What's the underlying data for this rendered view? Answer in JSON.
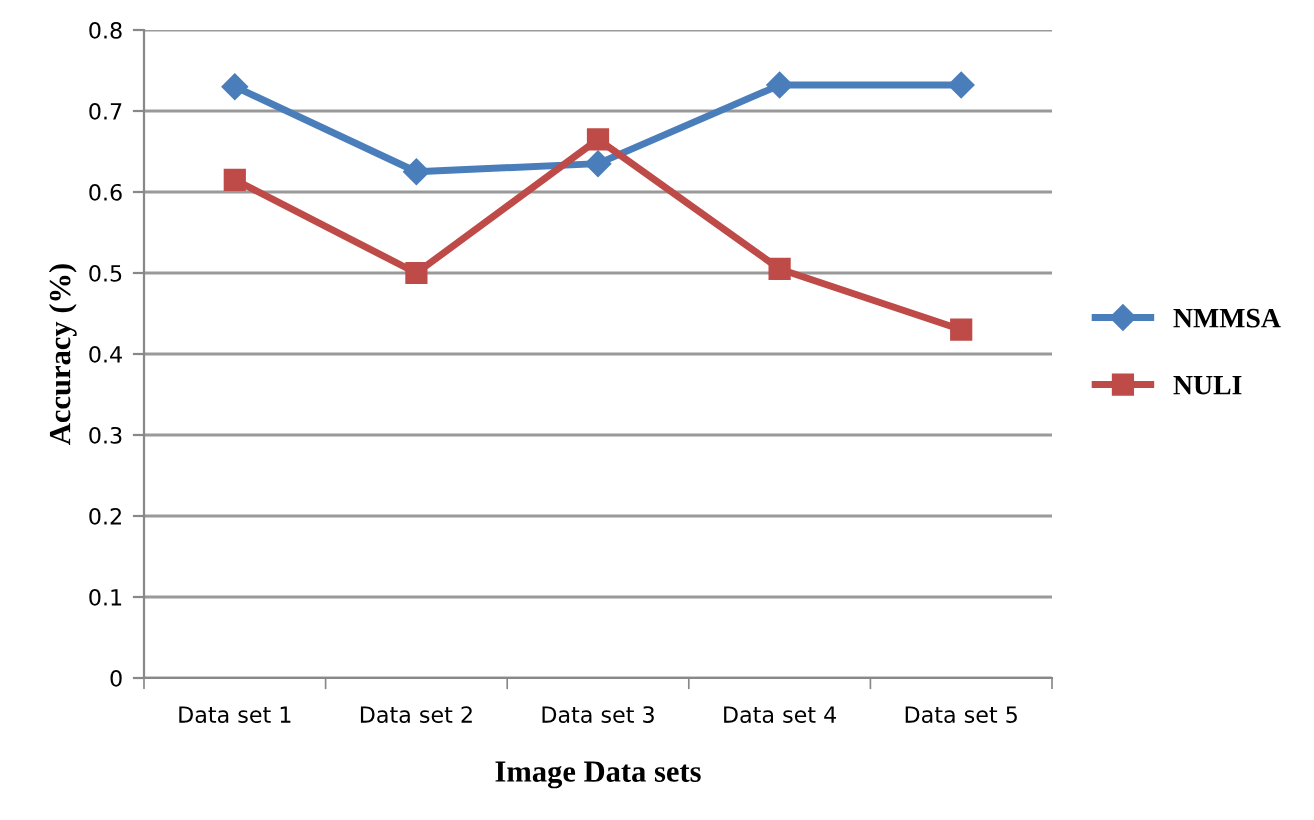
{
  "chart_data": {
    "type": "line",
    "xlabel": "Image Data sets",
    "ylabel": "Accuracy (%)",
    "categories": [
      "Data set 1",
      "Data set 2",
      "Data set 3",
      "Data set 4",
      "Data set 5"
    ],
    "series": [
      {
        "name": "NMMSA",
        "color": "#4a7ebb",
        "marker": "diamond",
        "values": [
          0.73,
          0.625,
          0.635,
          0.732,
          0.732
        ]
      },
      {
        "name": "NULI",
        "color": "#be4b48",
        "marker": "square",
        "values": [
          0.615,
          0.5,
          0.665,
          0.505,
          0.43
        ]
      }
    ],
    "ylim": [
      0,
      0.8
    ],
    "yticks": [
      0,
      0.1,
      0.2,
      0.3,
      0.4,
      0.5,
      0.6,
      0.7,
      0.8
    ],
    "grid": "y",
    "legend": "right",
    "line_style": "solid"
  }
}
